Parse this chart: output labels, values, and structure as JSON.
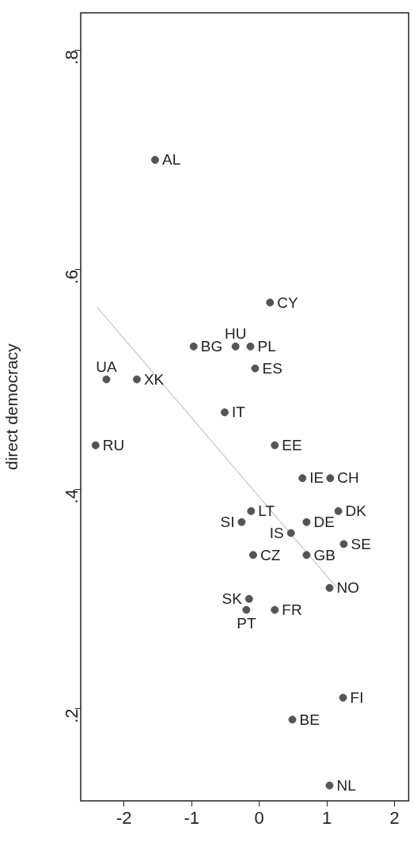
{
  "chart_data": {
    "type": "scatter",
    "ylabel": "direct democracy",
    "xlim": [
      -2.64,
      2.21
    ],
    "xticks": [
      -2,
      -1,
      0,
      1,
      2
    ],
    "ylim": [
      0.116,
      0.834
    ],
    "yticks": [
      {
        "value": 0.2,
        "label": ".2"
      },
      {
        "value": 0.4,
        "label": ".4"
      },
      {
        "value": 0.6,
        "label": ".6"
      },
      {
        "value": 0.8,
        "label": ".8"
      }
    ],
    "grid": false,
    "legend": false,
    "series": [
      {
        "marker": "circle",
        "color": "#555555",
        "x": [
          -1.54,
          0.16,
          -0.97,
          -0.35,
          -0.13,
          -0.06,
          -2.26,
          -1.81,
          -0.51,
          -2.42,
          0.23,
          0.64,
          1.05,
          -0.12,
          1.17,
          -0.26,
          0.7,
          0.47,
          1.25,
          -0.09,
          0.7,
          1.04,
          -0.15,
          -0.19,
          0.23,
          1.24,
          0.49,
          1.04
        ],
        "values": [
          0.7,
          0.57,
          0.53,
          0.53,
          0.53,
          0.51,
          0.5,
          0.5,
          0.47,
          0.44,
          0.44,
          0.41,
          0.41,
          0.38,
          0.38,
          0.37,
          0.37,
          0.36,
          0.35,
          0.34,
          0.34,
          0.31,
          0.3,
          0.29,
          0.29,
          0.21,
          0.19,
          0.13
        ]
      },
      {
        "type": "line",
        "color": "#aaaaaa",
        "x": [
          -2.4,
          1.15
        ],
        "values": [
          0.566,
          0.31
        ]
      }
    ],
    "annotations": [
      {
        "text": "AL",
        "x": -1.54,
        "y": 0.7
      },
      {
        "text": "CY",
        "x": 0.16,
        "y": 0.57
      },
      {
        "text": "BG",
        "x": -0.97,
        "y": 0.53
      },
      {
        "text": "HU",
        "x": -0.35,
        "y": 0.53
      },
      {
        "text": "PL",
        "x": -0.13,
        "y": 0.53
      },
      {
        "text": "ES",
        "x": -0.06,
        "y": 0.51
      },
      {
        "text": "UA",
        "x": -2.26,
        "y": 0.5
      },
      {
        "text": "XK",
        "x": -1.81,
        "y": 0.5
      },
      {
        "text": "IT",
        "x": -0.51,
        "y": 0.47
      },
      {
        "text": "RU",
        "x": -2.42,
        "y": 0.44
      },
      {
        "text": "EE",
        "x": 0.23,
        "y": 0.44
      },
      {
        "text": "IE",
        "x": 0.64,
        "y": 0.41
      },
      {
        "text": "CH",
        "x": 1.05,
        "y": 0.41
      },
      {
        "text": "LT",
        "x": -0.12,
        "y": 0.38
      },
      {
        "text": "DK",
        "x": 1.17,
        "y": 0.38
      },
      {
        "text": "SI",
        "x": -0.26,
        "y": 0.37
      },
      {
        "text": "DE",
        "x": 0.7,
        "y": 0.37
      },
      {
        "text": "IS",
        "x": 0.47,
        "y": 0.36
      },
      {
        "text": "SE",
        "x": 1.25,
        "y": 0.35
      },
      {
        "text": "CZ",
        "x": -0.09,
        "y": 0.34
      },
      {
        "text": "GB",
        "x": 0.7,
        "y": 0.34
      },
      {
        "text": "NO",
        "x": 1.04,
        "y": 0.31
      },
      {
        "text": "SK",
        "x": -0.15,
        "y": 0.3
      },
      {
        "text": "PT",
        "x": -0.19,
        "y": 0.29
      },
      {
        "text": "FR",
        "x": 0.23,
        "y": 0.29
      },
      {
        "text": "FI",
        "x": 1.24,
        "y": 0.21
      },
      {
        "text": "BE",
        "x": 0.49,
        "y": 0.19
      },
      {
        "text": "NL",
        "x": 1.04,
        "y": 0.13
      }
    ]
  }
}
